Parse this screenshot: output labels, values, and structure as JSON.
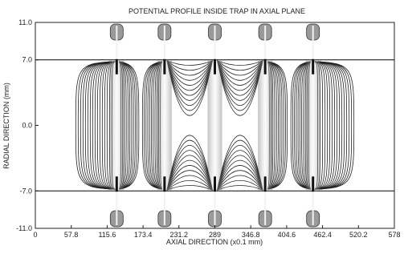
{
  "chart_data": {
    "type": "contour",
    "title": "POTENTIAL PROFILE INSIDE TRAP IN AXIAL PLANE",
    "xlabel": "AXIAL DIRECTION (x0.1 mm)",
    "ylabel": "RADIAL DIRECTION (mm)",
    "xlim": [
      0,
      578
    ],
    "ylim": [
      -11.0,
      11.0
    ],
    "xticks": [
      "0",
      "57.8",
      "115.6",
      "173.4",
      "231.2",
      "289",
      "346.8",
      "404.6",
      "462.4",
      "520.2",
      "578"
    ],
    "yticks": [
      "11.0",
      "7.0",
      "0.0",
      "-7.0",
      "-11.0"
    ],
    "electrode_centers_x": [
      131,
      208,
      289,
      370,
      447
    ],
    "electrode_radius": 7.0,
    "grid": false,
    "line_color": "#222222"
  }
}
